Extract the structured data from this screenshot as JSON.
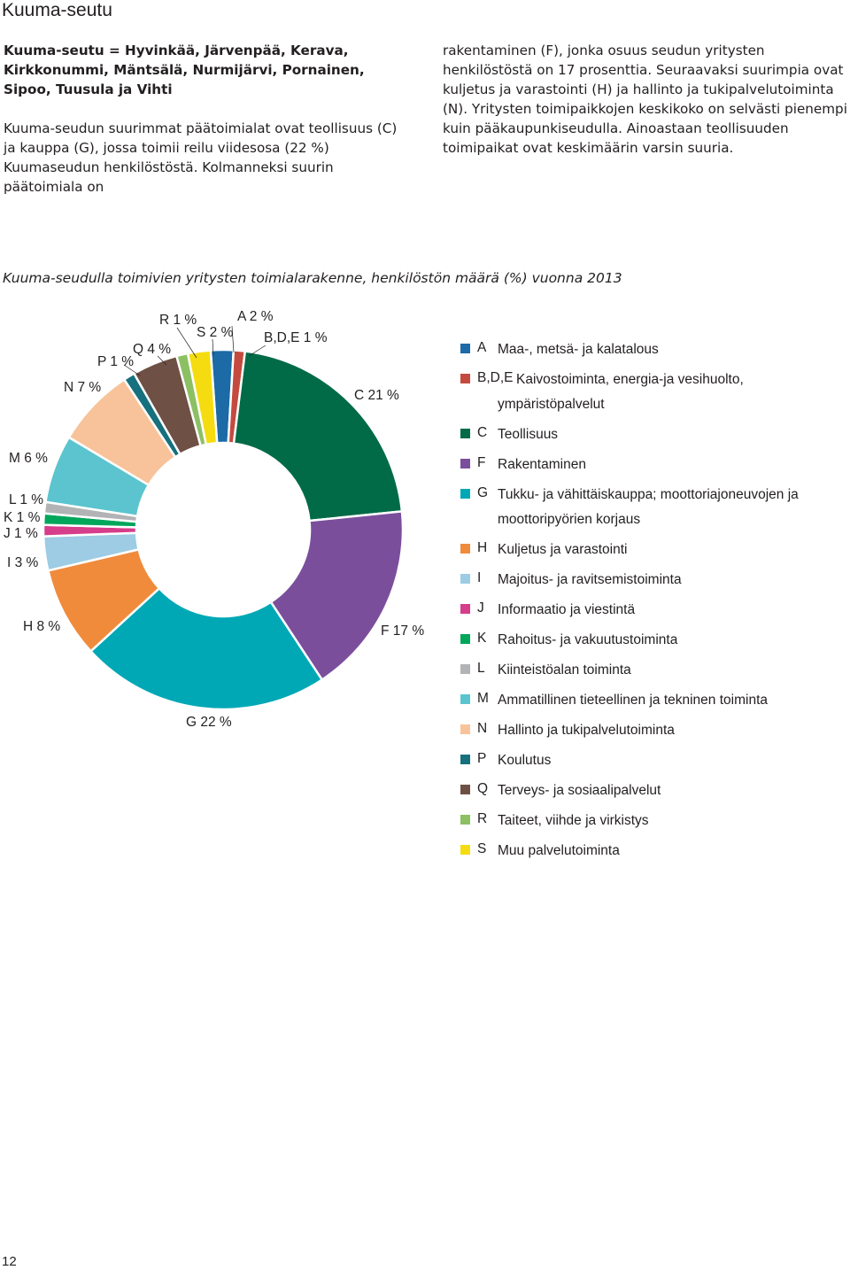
{
  "header": {
    "title": "Kuuma-seutu"
  },
  "text": {
    "col1_bold": "Kuuma-seutu = Hyvinkää, Järvenpää, Kerava, Kirkkonummi, Mäntsälä, Nurmijärvi, Pornainen, Sipoo, Tuusula ja Vihti",
    "col1_body": "Kuuma-seudun suurimmat päätoimialat ovat teollisuus (C) ja kauppa (G), jossa toimii reilu viidesosa (22 %) Kuumaseudun henkilöstöstä. Kolmanneksi suurin päätoimiala on",
    "col2_body": "rakentaminen (F), jonka osuus seudun yritysten henkilöstöstä on 17 prosenttia. Seuraavaksi suurimpia ovat kuljetus ja varastointi (H) ja hallinto ja tukipalvelutoiminta (N). Yritysten toimipaikkojen keskikoko on selvästi pienempi kuin pääkaupunkiseudulla. Ainoastaan teollisuuden toimipaikat ovat keskimäärin varsin suuria."
  },
  "chart_data": {
    "type": "pie",
    "title": "Kuuma-seudulla toimivien yritysten toimialarakenne, henkilöstön määrä (%) vuonna 2013",
    "categories": [
      "A",
      "B,D,E",
      "C",
      "F",
      "G",
      "H",
      "I",
      "J",
      "K",
      "L",
      "M",
      "N",
      "P",
      "Q",
      "R",
      "S"
    ],
    "values": [
      2,
      1,
      21,
      17,
      22,
      8,
      3,
      1,
      1,
      1,
      6,
      7,
      1,
      4,
      1,
      2
    ],
    "labels": [
      "A 2 %",
      "B,D,E 1 %",
      "C 21 %",
      "F 17 %",
      "G 22 %",
      "H 8 %",
      "I 3 %",
      "J 1 %",
      "K 1 %",
      "L 1 %",
      "M 6 %",
      "N 7 %",
      "P 1 %",
      "Q 4 %",
      "R 1 %",
      "S 2 %"
    ],
    "colors": [
      "#1c6aa6",
      "#c44a3f",
      "#006b46",
      "#7b4e9c",
      "#00a8b5",
      "#f08b3c",
      "#9dcce4",
      "#d63d8a",
      "#00a65a",
      "#b1b3b5",
      "#5bc4cf",
      "#f8c39a",
      "#16707d",
      "#6e5044",
      "#8cc063",
      "#f5dc10"
    ],
    "legend": [
      {
        "code": "A",
        "text": "Maa-, metsä- ja kalatalous"
      },
      {
        "code": "B,D,E",
        "text": "Kaivostoiminta, energia-ja vesihuolto, ympäristöpalvelut"
      },
      {
        "code": "C",
        "text": "Teollisuus"
      },
      {
        "code": "F",
        "text": "Rakentaminen"
      },
      {
        "code": "G",
        "text": "Tukku- ja vähittäiskauppa; moottoriajoneuvojen ja moottoripyörien korjaus"
      },
      {
        "code": "H",
        "text": "Kuljetus ja varastointi"
      },
      {
        "code": "I",
        "text": "Majoitus- ja ravitsemistoiminta"
      },
      {
        "code": "J",
        "text": "Informaatio ja viestintä"
      },
      {
        "code": "K",
        "text": "Rahoitus- ja vakuutustoiminta"
      },
      {
        "code": "L",
        "text": "Kiinteistöalan toiminta"
      },
      {
        "code": "M",
        "text": "Ammatillinen tieteellinen ja tekninen toiminta"
      },
      {
        "code": "N",
        "text": "Hallinto ja tukipalvelutoiminta"
      },
      {
        "code": "P",
        "text": "Koulutus"
      },
      {
        "code": "Q",
        "text": "Terveys- ja sosiaalipalvelut"
      },
      {
        "code": "R",
        "text": "Taiteet, viihde ja virkistys"
      },
      {
        "code": "S",
        "text": "Muu palvelutoiminta"
      }
    ]
  },
  "footer": {
    "page_number": "12"
  }
}
